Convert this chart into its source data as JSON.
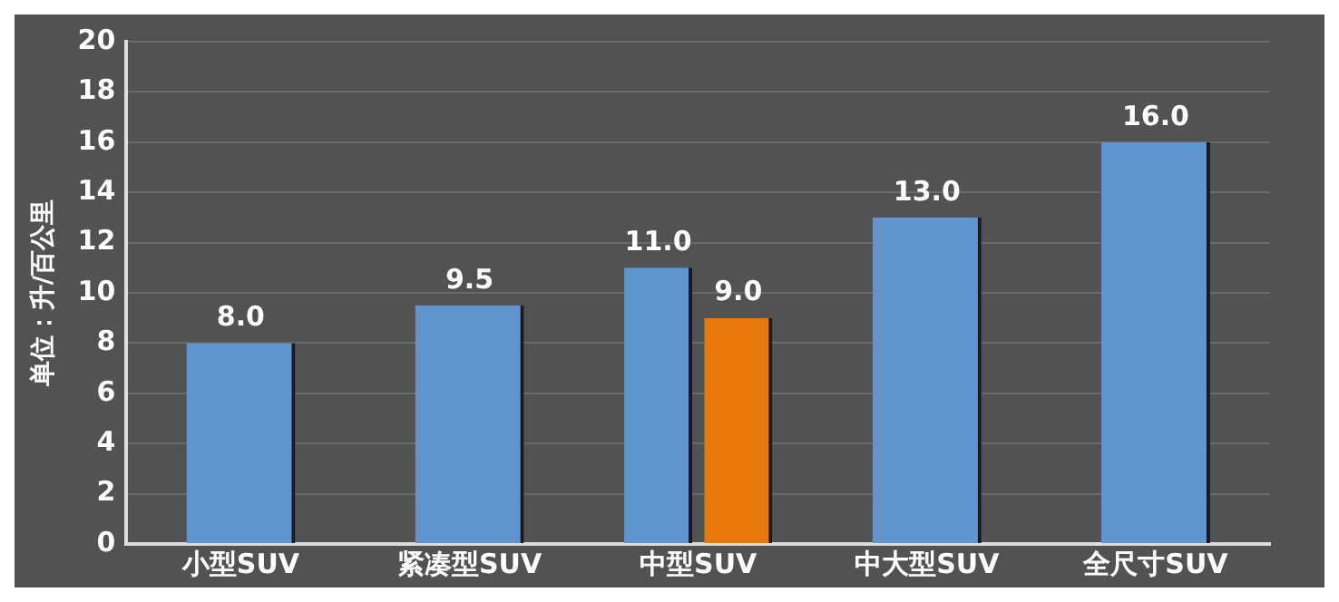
{
  "chart_data": {
    "type": "bar",
    "ylabel": "单位：升/百公里",
    "categories": [
      "小型SUV",
      "紧凑型SUV",
      "中型SUV",
      "中大型SUV",
      "全尺寸SUV"
    ],
    "series": [
      {
        "color": "#5f94cf",
        "values": [
          8.0,
          9.5,
          11.0,
          13.0,
          16.0
        ],
        "value_labels": [
          "8.0",
          "9.5",
          "11.0",
          "13.0",
          "16.0"
        ]
      },
      {
        "color": "#e8780a",
        "values": [
          null,
          null,
          9.0,
          null,
          null
        ],
        "value_labels": [
          null,
          null,
          "9.0",
          null,
          null
        ]
      }
    ],
    "ylim": [
      0,
      20
    ],
    "yticks": [
      0,
      2,
      4,
      6,
      8,
      10,
      12,
      14,
      16,
      18,
      20
    ],
    "grid": "y",
    "legend": false
  }
}
